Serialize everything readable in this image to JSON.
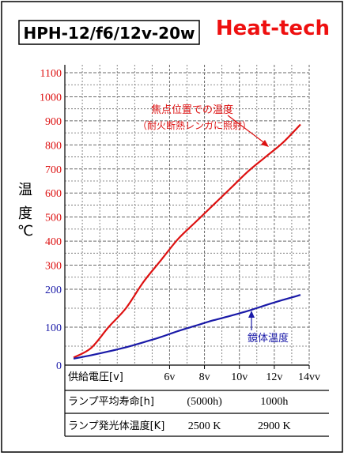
{
  "header": {
    "model_label": "HPH-12/f6/12v-20w",
    "brand": "Heat-tech"
  },
  "colors": {
    "red": "#dd1111",
    "blue": "#1a1aa8",
    "grid": "#6a6a6a",
    "axis": "#000000"
  },
  "chart_data": {
    "type": "line",
    "xlabel": "供給電圧[v]",
    "ylabel": [
      "温",
      "度",
      "℃"
    ],
    "xlim": [
      0,
      14
    ],
    "x_ticks": [
      {
        "value": 6,
        "label": "6v"
      },
      {
        "value": 8,
        "label": "8v"
      },
      {
        "value": 10,
        "label": "10v"
      },
      {
        "value": 12,
        "label": "12v"
      },
      {
        "value": 14,
        "label": "14vv"
      }
    ],
    "y_ticks_upper": [
      {
        "value": 1100,
        "label": "1100"
      },
      {
        "value": 1000,
        "label": "1000"
      },
      {
        "value": 900,
        "label": "900"
      },
      {
        "value": 800,
        "label": "800"
      },
      {
        "value": 700,
        "label": "700"
      },
      {
        "value": 600,
        "label": "600"
      },
      {
        "value": 500,
        "label": "500"
      },
      {
        "value": 400,
        "label": "400"
      },
      {
        "value": 300,
        "label": "300"
      }
    ],
    "y_ticks_lower": [
      {
        "value": 200,
        "label": "200"
      },
      {
        "value": 100,
        "label": "100"
      },
      {
        "value": 0,
        "label": "0"
      }
    ],
    "series": [
      {
        "name": "焦点位置での温度",
        "subtitle": "（耐火断熱レンガに照射）",
        "color": "#dd1111",
        "x": [
          0.5,
          1.5,
          2.5,
          3.5,
          4.5,
          5.5,
          6.5,
          7.5,
          8.5,
          9.5,
          10.5,
          11.5,
          12.5,
          13.5
        ],
        "y": [
          20,
          45,
          100,
          150,
          230,
          320,
          410,
          480,
          550,
          620,
          690,
          750,
          810,
          885
        ]
      },
      {
        "name": "鏡体温度",
        "color": "#1a1aa8",
        "x": [
          0.5,
          1.5,
          2.5,
          3.5,
          4.5,
          5.5,
          6.5,
          7.5,
          8.5,
          9.5,
          10.5,
          11.5,
          12.5,
          13.5
        ],
        "y": [
          17,
          26,
          36,
          47,
          60,
          74,
          90,
          104,
          118,
          130,
          143,
          158,
          172,
          185
        ]
      }
    ],
    "grid": true,
    "table": [
      {
        "label": "供給電圧[v]",
        "cells": [
          {
            "at": 6,
            "text": "6v"
          },
          {
            "at": 8,
            "text": "8v"
          },
          {
            "at": 10,
            "text": "10v"
          },
          {
            "at": 12,
            "text": "12v"
          },
          {
            "at": 14,
            "text": "14vv"
          }
        ]
      },
      {
        "label": "ランプ平均寿命[h]",
        "cells": [
          {
            "at": 8,
            "text": "(5000h)"
          },
          {
            "at": 12,
            "text": "1000h"
          }
        ]
      },
      {
        "label": "ランプ発光体温度[K]",
        "cells": [
          {
            "at": 8,
            "text": "2500 K"
          },
          {
            "at": 12,
            "text": "2900 K"
          }
        ]
      }
    ]
  }
}
